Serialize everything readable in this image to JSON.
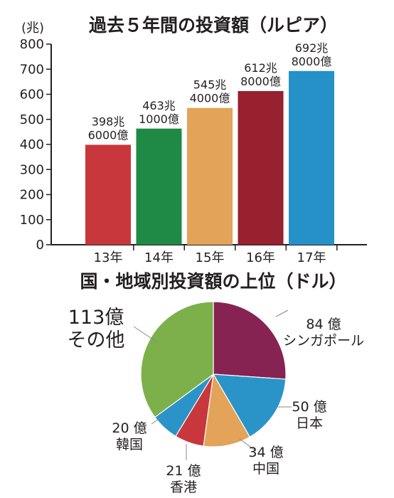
{
  "chart_data": [
    {
      "type": "bar",
      "title": "過去５年間の投資額（ルピア）",
      "unit_label": "(兆)",
      "categories": [
        "13年",
        "14年",
        "15年",
        "16年",
        "17年"
      ],
      "values": [
        398.6,
        463.1,
        545.4,
        612.8,
        692.8
      ],
      "value_labels": [
        [
          "398兆",
          "6000億"
        ],
        [
          "463兆",
          "1000億"
        ],
        [
          "545兆",
          "4000億"
        ],
        [
          "612兆",
          "8000億"
        ],
        [
          "692兆",
          "8000億"
        ]
      ],
      "colors": [
        "#c8373b",
        "#1e8a46",
        "#e3a358",
        "#97212e",
        "#2492c9"
      ],
      "ylim": [
        0,
        800
      ],
      "yticks": [
        0,
        100,
        200,
        300,
        400,
        500,
        600,
        700,
        800
      ]
    },
    {
      "type": "pie",
      "title": "国・地域別投資額の上位（ドル）",
      "slices": [
        {
          "label": [
            "84 億",
            "シンガポール"
          ],
          "value": 84,
          "color": "#862352"
        },
        {
          "label": [
            "50 億",
            "日本"
          ],
          "value": 50,
          "color": "#2a94c9"
        },
        {
          "label": [
            "34 億",
            "中国"
          ],
          "value": 34,
          "color": "#e3a358"
        },
        {
          "label": [
            "21 億",
            "香港"
          ],
          "value": 21,
          "color": "#c8373b"
        },
        {
          "label": [
            "20 億",
            "韓国"
          ],
          "value": 20,
          "color": "#2a94c9"
        },
        {
          "label": [
            "113億",
            "その他"
          ],
          "value": 113,
          "color": "#7db04a"
        }
      ]
    }
  ]
}
